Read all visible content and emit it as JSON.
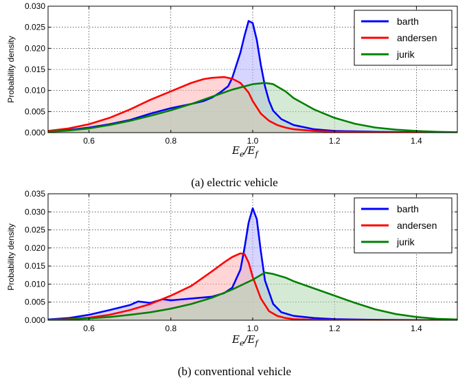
{
  "chart_data": [
    {
      "type": "area",
      "caption": "(a) electric vehicle",
      "ylabel": "Probability density",
      "xlabel_base": "E",
      "xlabel_sub1": "e",
      "xlabel_sep": "/",
      "xlabel_sub2": "f",
      "xlim": [
        0.5,
        1.5
      ],
      "ylim": [
        0,
        0.03
      ],
      "xticks": [
        "0.6",
        "0.8",
        "1.0",
        "1.2",
        "1.4"
      ],
      "xtick_values": [
        0.6,
        0.8,
        1.0,
        1.2,
        1.4
      ],
      "yticks": [
        "0.000",
        "0.005",
        "0.010",
        "0.015",
        "0.020",
        "0.025",
        "0.030"
      ],
      "ytick_values": [
        0,
        0.005,
        0.01,
        0.015,
        0.02,
        0.025,
        0.03
      ],
      "grid": true,
      "legend_position": "top-right",
      "series": [
        {
          "name": "barth",
          "color": "#0000ff",
          "fill": "#b3b3ff",
          "x": [
            0.5,
            0.55,
            0.6,
            0.65,
            0.7,
            0.75,
            0.8,
            0.85,
            0.88,
            0.9,
            0.92,
            0.94,
            0.95,
            0.96,
            0.97,
            0.98,
            0.99,
            1.0,
            1.01,
            1.02,
            1.03,
            1.04,
            1.05,
            1.07,
            1.1,
            1.15,
            1.2,
            1.3,
            1.4,
            1.5
          ],
          "y": [
            0.0003,
            0.0006,
            0.0012,
            0.002,
            0.003,
            0.0045,
            0.0058,
            0.0068,
            0.0075,
            0.0083,
            0.0095,
            0.011,
            0.013,
            0.016,
            0.019,
            0.023,
            0.0265,
            0.026,
            0.022,
            0.016,
            0.011,
            0.0075,
            0.0052,
            0.0032,
            0.0018,
            0.0008,
            0.0004,
            0.0002,
            0.0001,
            0.0
          ]
        },
        {
          "name": "andersen",
          "color": "#ff0000",
          "fill": "#ffb3b3",
          "x": [
            0.5,
            0.55,
            0.6,
            0.65,
            0.7,
            0.75,
            0.8,
            0.85,
            0.88,
            0.9,
            0.93,
            0.95,
            0.97,
            0.99,
            1.0,
            1.02,
            1.04,
            1.06,
            1.08,
            1.1,
            1.15,
            1.2,
            1.3,
            1.4,
            1.5
          ],
          "y": [
            0.0004,
            0.001,
            0.002,
            0.0035,
            0.0055,
            0.0078,
            0.0098,
            0.0118,
            0.0127,
            0.013,
            0.0132,
            0.0128,
            0.0118,
            0.0095,
            0.0075,
            0.0045,
            0.0028,
            0.0018,
            0.0012,
            0.0008,
            0.0004,
            0.0002,
            0.0001,
            5e-05,
            0.0
          ]
        },
        {
          "name": "jurik",
          "color": "#008000",
          "fill": "#b3d9b3",
          "x": [
            0.5,
            0.55,
            0.6,
            0.65,
            0.7,
            0.75,
            0.8,
            0.85,
            0.9,
            0.95,
            1.0,
            1.03,
            1.05,
            1.08,
            1.1,
            1.15,
            1.2,
            1.25,
            1.3,
            1.35,
            1.4,
            1.45,
            1.5
          ],
          "y": [
            0.0002,
            0.0005,
            0.001,
            0.0018,
            0.0028,
            0.004,
            0.0053,
            0.0068,
            0.0085,
            0.0102,
            0.0115,
            0.0118,
            0.0115,
            0.0098,
            0.0082,
            0.0055,
            0.0035,
            0.0021,
            0.0012,
            0.0007,
            0.0004,
            0.0002,
            0.0001
          ]
        }
      ]
    },
    {
      "type": "area",
      "caption": "(b) conventional vehicle",
      "ylabel": "Probability density",
      "xlabel_base": "E",
      "xlabel_sub1": "e",
      "xlabel_sep": "/",
      "xlabel_sub2": "f",
      "xlim": [
        0.5,
        1.5
      ],
      "ylim": [
        0,
        0.035
      ],
      "xticks": [
        "0.6",
        "0.8",
        "1.0",
        "1.2",
        "1.4"
      ],
      "xtick_values": [
        0.6,
        0.8,
        1.0,
        1.2,
        1.4
      ],
      "yticks": [
        "0.000",
        "0.005",
        "0.010",
        "0.015",
        "0.020",
        "0.025",
        "0.030",
        "0.035"
      ],
      "ytick_values": [
        0,
        0.005,
        0.01,
        0.015,
        0.02,
        0.025,
        0.03,
        0.035
      ],
      "grid": true,
      "legend_position": "top-right",
      "series": [
        {
          "name": "barth",
          "color": "#0000ff",
          "fill": "#b3b3ff",
          "x": [
            0.5,
            0.55,
            0.6,
            0.65,
            0.7,
            0.72,
            0.75,
            0.78,
            0.8,
            0.85,
            0.9,
            0.93,
            0.95,
            0.97,
            0.98,
            0.99,
            1.0,
            1.01,
            1.02,
            1.03,
            1.05,
            1.07,
            1.1,
            1.15,
            1.2,
            1.3,
            1.4,
            1.5
          ],
          "y": [
            0.0002,
            0.0006,
            0.0015,
            0.0028,
            0.0042,
            0.0052,
            0.0048,
            0.0058,
            0.0055,
            0.006,
            0.0065,
            0.0075,
            0.009,
            0.014,
            0.02,
            0.027,
            0.031,
            0.028,
            0.019,
            0.011,
            0.0045,
            0.0022,
            0.0012,
            0.0006,
            0.0003,
            0.0001,
            5e-05,
            0.0
          ]
        },
        {
          "name": "andersen",
          "color": "#ff0000",
          "fill": "#ffb3b3",
          "x": [
            0.5,
            0.55,
            0.6,
            0.65,
            0.7,
            0.75,
            0.8,
            0.85,
            0.9,
            0.93,
            0.95,
            0.97,
            0.98,
            0.99,
            1.0,
            1.02,
            1.04,
            1.06,
            1.08,
            1.1,
            1.15,
            1.2,
            1.3,
            1.4,
            1.5
          ],
          "y": [
            0.0001,
            0.0003,
            0.0007,
            0.0015,
            0.0028,
            0.0045,
            0.0068,
            0.0095,
            0.0135,
            0.016,
            0.0175,
            0.0185,
            0.0183,
            0.016,
            0.012,
            0.006,
            0.0025,
            0.0012,
            0.0006,
            0.0003,
            0.0001,
            5e-05,
            0.0,
            0.0,
            0.0
          ]
        },
        {
          "name": "jurik",
          "color": "#008000",
          "fill": "#b3d9b3",
          "x": [
            0.5,
            0.55,
            0.6,
            0.65,
            0.7,
            0.75,
            0.8,
            0.85,
            0.9,
            0.95,
            1.0,
            1.03,
            1.05,
            1.08,
            1.1,
            1.15,
            1.2,
            1.25,
            1.3,
            1.35,
            1.4,
            1.45,
            1.5
          ],
          "y": [
            0.0001,
            0.0002,
            0.0005,
            0.0009,
            0.0015,
            0.0022,
            0.0032,
            0.0045,
            0.0062,
            0.0085,
            0.0112,
            0.0132,
            0.0128,
            0.0118,
            0.0108,
            0.0088,
            0.0068,
            0.0048,
            0.003,
            0.0017,
            0.0009,
            0.0004,
            0.0002
          ]
        }
      ]
    }
  ]
}
